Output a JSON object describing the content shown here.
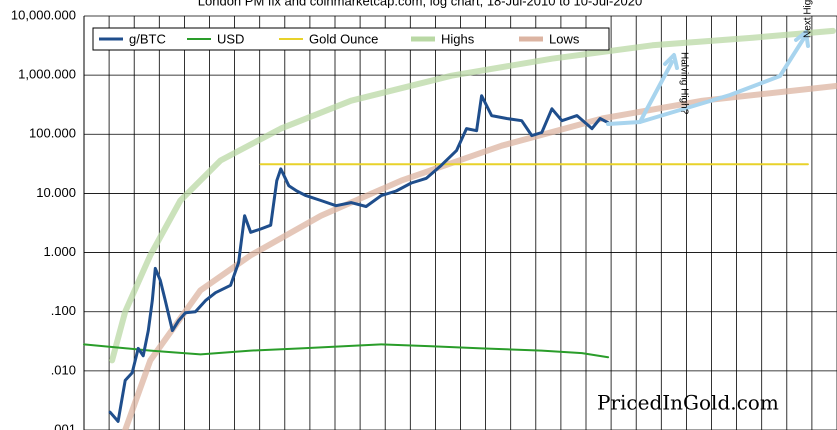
{
  "chart_data": {
    "type": "line",
    "title": "London PM fix and coinmarketcap.com, log chart, 18-Jul-2010 to 10-Jul-2020",
    "log_scale": true,
    "grid": true,
    "legend": "top-left",
    "xlim": [
      2010,
      2025
    ],
    "ylim": [
      0.001,
      10000
    ],
    "yticks": [
      {
        "value": 10000,
        "label": "10,000.000"
      },
      {
        "value": 1000,
        "label": "1,000.000"
      },
      {
        "value": 100,
        "label": "100.000"
      },
      {
        "value": 10,
        "label": "10.000"
      },
      {
        "value": 1,
        "label": "1.000"
      },
      {
        "value": 0.1,
        "label": ".100"
      },
      {
        "value": 0.01,
        "label": ".010"
      },
      {
        "value": 0.001,
        "label": ".001"
      }
    ],
    "series": [
      {
        "name": "g/BTC",
        "color": "#1f4e8c",
        "width": 3,
        "x": [
          2010.52,
          2010.68,
          2010.82,
          2010.96,
          2011.08,
          2011.18,
          2011.28,
          2011.36,
          2011.42,
          2011.52,
          2011.62,
          2011.76,
          2011.88,
          2012.02,
          2012.22,
          2012.42,
          2012.62,
          2012.92,
          2013.08,
          2013.2,
          2013.32,
          2013.52,
          2013.72,
          2013.84,
          2013.92,
          2014.08,
          2014.24,
          2014.42,
          2014.72,
          2015.02,
          2015.32,
          2015.62,
          2015.92,
          2016.22,
          2016.52,
          2016.82,
          2017.12,
          2017.42,
          2017.62,
          2017.82,
          2017.92,
          2018.12,
          2018.42,
          2018.72,
          2018.92,
          2019.12,
          2019.32,
          2019.52,
          2019.82,
          2020.12,
          2020.28,
          2020.44
        ],
        "values": [
          0.002,
          0.0014,
          0.0069,
          0.0093,
          0.024,
          0.018,
          0.048,
          0.154,
          0.54,
          0.34,
          0.154,
          0.048,
          0.07,
          0.096,
          0.1,
          0.154,
          0.21,
          0.28,
          0.68,
          4.2,
          2.2,
          2.5,
          2.9,
          16.5,
          26,
          13.5,
          11,
          9.2,
          7.6,
          6.2,
          7,
          6,
          9.2,
          11,
          15,
          18,
          30,
          53,
          125,
          115,
          450,
          207,
          185,
          170,
          95,
          107,
          270,
          170,
          207,
          125,
          185,
          157
        ]
      },
      {
        "name": "USD",
        "color": "#2a9d2a",
        "width": 2,
        "x": [
          2010.0,
          2011.32,
          2012.32,
          2013.32,
          2014.32,
          2015.92,
          2016.92,
          2017.92,
          2019.12,
          2019.92,
          2020.44
        ],
        "values": [
          0.028,
          0.022,
          0.019,
          0.022,
          0.024,
          0.028,
          0.026,
          0.024,
          0.022,
          0.02,
          0.017
        ]
      },
      {
        "name": "Gold Ounce",
        "color": "#e8d22a",
        "width": 2,
        "x": [
          2013.52,
          2024.42
        ],
        "values": [
          31.1035,
          31.1035
        ]
      },
      {
        "name": "Highs",
        "color": "#b9d8a4",
        "width": 6,
        "x": [
          2010.56,
          2010.82,
          2011.32,
          2011.92,
          2012.72,
          2013.92,
          2015.32,
          2017.32,
          2019.32,
          2021.32,
          2023.32,
          2024.92
        ],
        "values": [
          0.015,
          0.1,
          0.9,
          7.6,
          36,
          125,
          370,
          980,
          1900,
          3200,
          4300,
          5600
        ]
      },
      {
        "name": "Lows",
        "color": "#dcb4a2",
        "width": 6,
        "x": [
          2010.82,
          2011.32,
          2012.32,
          2013.32,
          2014.72,
          2016.32,
          2018.32,
          2020.32,
          2022.32,
          2025.0
        ],
        "values": [
          0.001,
          0.015,
          0.23,
          0.9,
          4.2,
          16.5,
          64,
          185,
          370,
          660
        ]
      }
    ],
    "annotations": [
      "Halving High?",
      "Next High?"
    ],
    "watermark": "PricedInGold.com"
  }
}
